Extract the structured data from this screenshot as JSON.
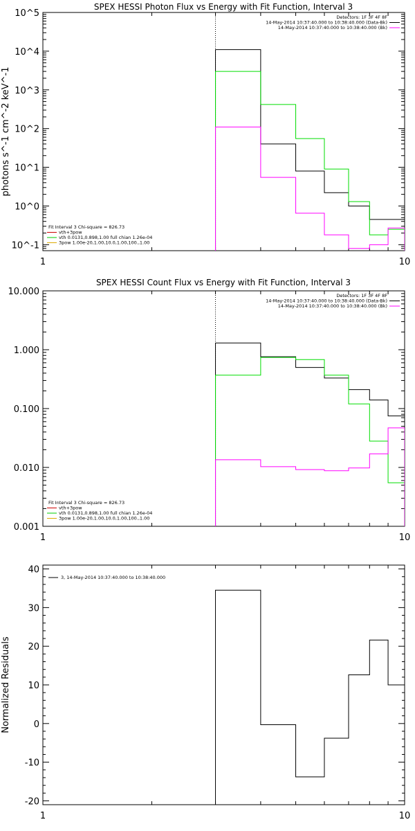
{
  "chart_data": [
    {
      "type": "line",
      "title": "SPEX HESSI Photon Flux vs Energy with Fit Function, Interval 3",
      "ylabel": "photons s^-1 cm^-2 keV^-1",
      "xlabel": "",
      "xscale": "log",
      "yscale": "log",
      "xlim": [
        1,
        10
      ],
      "ylim": [
        0.07,
        100000
      ],
      "x_ticks": [
        "1",
        "10"
      ],
      "y_ticks": [
        "10^-1",
        "10^0",
        "10^1",
        "10^2",
        "10^3",
        "10^4",
        "10^5"
      ],
      "bin_edges": [
        3,
        4,
        5,
        6,
        7,
        8,
        9,
        10
      ],
      "vline_x": 3,
      "legend_top_right": [
        {
          "text": "Detectors: 1F 3F 4F 8F",
          "color": ""
        },
        {
          "text": "14-May-2014 10:37:40.000 to 10:38:40.000 (Data-Bk)",
          "color": "#000000"
        },
        {
          "text": "14-May-2014 10:37:40.000 to 10:38:40.000 (Bk)",
          "color": "#ff00ff"
        }
      ],
      "legend_bottom_left": [
        {
          "text": "Fit Interval 3   Chi-square = 826.73",
          "color": ""
        },
        {
          "text": "vth+3pow",
          "color": "#cc0000"
        },
        {
          "text": "vth 0.0131,0.898,1.00  full chian 1.26e-04",
          "color": "#00cc00"
        },
        {
          "text": "3pow 1.00e-20,1.00,10.0,1.00,100.,1.00",
          "color": "#ddaa00"
        }
      ],
      "series": [
        {
          "name": "Data-Bk",
          "color": "#000000",
          "values": [
            11000,
            40,
            8,
            2.2,
            1.0,
            0.45,
            0.45
          ]
        },
        {
          "name": "vth+3pow",
          "color": "#00dd00",
          "values": [
            3000,
            420,
            55,
            9,
            1.3,
            0.18,
            0.25
          ]
        },
        {
          "name": "Bk",
          "color": "#ff00ff",
          "values": [
            110,
            5.5,
            0.65,
            0.18,
            0.08,
            0.1,
            0.27
          ]
        }
      ]
    },
    {
      "type": "line",
      "title": "SPEX HESSI Count Flux vs Energy with Fit Function, Interval 3",
      "ylabel": "",
      "xlabel": "",
      "xscale": "log",
      "yscale": "log",
      "xlim": [
        1,
        10
      ],
      "ylim": [
        0.001,
        10
      ],
      "x_ticks": [
        "1",
        "10"
      ],
      "y_ticks": [
        "0.001",
        "0.010",
        "0.100",
        "1.000",
        "10.000"
      ],
      "bin_edges": [
        3,
        4,
        5,
        6,
        7,
        8,
        9,
        10
      ],
      "vline_x": 3,
      "legend_top_right": [
        {
          "text": "Detectors: 1F 3F 4F 8F",
          "color": ""
        },
        {
          "text": "14-May-2014 10:37:40.000 to 10:38:40.000 (Data-Bk)",
          "color": "#000000"
        },
        {
          "text": "14-May-2014 10:37:40.000 to 10:38:40.000 (Bk)",
          "color": "#ff00ff"
        }
      ],
      "legend_bottom_left": [
        {
          "text": "Fit Interval 3   Chi-square = 826.73",
          "color": ""
        },
        {
          "text": "vth+3pow",
          "color": "#cc0000"
        },
        {
          "text": "vth 0.0131,0.898,1.00  full chian 1.26e-04",
          "color": "#00cc00"
        },
        {
          "text": "3pow 1.00e-20,1.00,10.0,1.00,100.,1.00",
          "color": "#ddaa00"
        }
      ],
      "series": [
        {
          "name": "Data-Bk",
          "color": "#000000",
          "values": [
            1.3,
            0.76,
            0.5,
            0.33,
            0.21,
            0.14,
            0.075
          ]
        },
        {
          "name": "vth+3pow",
          "color": "#00dd00",
          "values": [
            0.37,
            0.74,
            0.68,
            0.37,
            0.12,
            0.028,
            0.0055
          ]
        },
        {
          "name": "Bk",
          "color": "#ff00ff",
          "values": [
            0.0135,
            0.0103,
            0.0092,
            0.0088,
            0.0098,
            0.017,
            0.047
          ]
        }
      ]
    },
    {
      "type": "line",
      "title": "",
      "ylabel": "Normalized Residuals",
      "xlabel": "",
      "xscale": "log",
      "yscale": "linear",
      "xlim": [
        1,
        10
      ],
      "ylim": [
        -21,
        41
      ],
      "x_ticks": [
        "1",
        "10"
      ],
      "y_ticks": [
        "-20",
        "-10",
        "0",
        "10",
        "20",
        "30",
        "40"
      ],
      "bin_edges": [
        3,
        4,
        5,
        6,
        7,
        8,
        9,
        10
      ],
      "legend_top_left": [
        {
          "text": "3, 14-May-2014 10:37:40.000 to 10:38:40.000",
          "color": "#000000"
        }
      ],
      "series": [
        {
          "name": "3, 14-May-2014 10:37:40.000 to 10:38:40.000",
          "color": "#000000",
          "values": [
            34.5,
            -0.3,
            -13.8,
            -3.8,
            12.6,
            21.6,
            10.0
          ]
        }
      ]
    }
  ]
}
